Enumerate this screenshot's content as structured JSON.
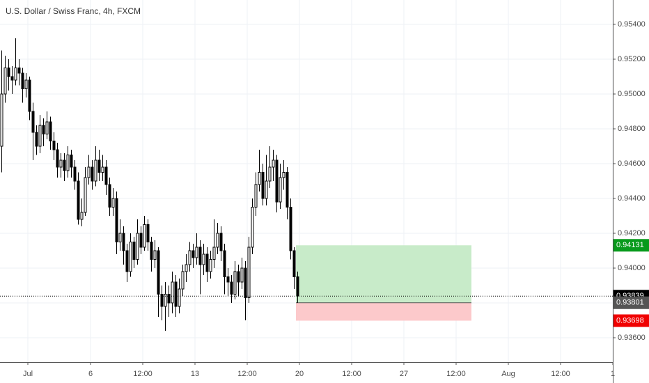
{
  "chart_data": {
    "type": "candlestick",
    "title": "U.S. Dollar / Swiss Franc, 4h, FXCM",
    "xlim": [
      0,
      176
    ],
    "xticks": [
      {
        "value": 8,
        "label": "Jul"
      },
      {
        "value": 26,
        "label": "6"
      },
      {
        "value": 41,
        "label": "12:00"
      },
      {
        "value": 56,
        "label": "13"
      },
      {
        "value": 71,
        "label": "12:00"
      },
      {
        "value": 86,
        "label": "20"
      },
      {
        "value": 101,
        "label": "12:00"
      },
      {
        "value": 116,
        "label": "27"
      },
      {
        "value": 131,
        "label": "12:00"
      },
      {
        "value": 146,
        "label": "Aug"
      },
      {
        "value": 161,
        "label": "12:00"
      },
      {
        "value": 176,
        "label": "1"
      }
    ],
    "ylim": [
      0.9346,
      0.9554
    ],
    "yticks": [
      {
        "value": 0.936,
        "label": "0.93600"
      },
      {
        "value": 0.938,
        "label": "0.93800"
      },
      {
        "value": 0.94,
        "label": "0.94000"
      },
      {
        "value": 0.942,
        "label": "0.94200"
      },
      {
        "value": 0.944,
        "label": "0.94400"
      },
      {
        "value": 0.946,
        "label": "0.94600"
      },
      {
        "value": 0.948,
        "label": "0.94800"
      },
      {
        "value": 0.95,
        "label": "0.95000"
      },
      {
        "value": 0.952,
        "label": "0.95200"
      },
      {
        "value": 0.954,
        "label": "0.95400"
      }
    ],
    "grid": true,
    "up_color": "#ffffff",
    "down_color": "#000000",
    "open": [
      0.947,
      0.95,
      0.9515,
      0.951,
      0.9508,
      0.9515,
      0.9512,
      0.9503,
      0.9508,
      0.949,
      0.9478,
      0.947,
      0.9482,
      0.9477,
      0.9484,
      0.9473,
      0.9468,
      0.9458,
      0.9462,
      0.9456,
      0.9465,
      0.9458,
      0.945,
      0.9428,
      0.9432,
      0.9452,
      0.9458,
      0.945,
      0.9462,
      0.9455,
      0.9458,
      0.9448,
      0.9435,
      0.944,
      0.9415,
      0.942,
      0.941,
      0.9398,
      0.9415,
      0.9405,
      0.942,
      0.9412,
      0.9425,
      0.9415,
      0.9405,
      0.941,
      0.9385,
      0.9378,
      0.9385,
      0.938,
      0.9392,
      0.9378,
      0.9388,
      0.9398,
      0.9402,
      0.941,
      0.9406,
      0.9412,
      0.9402,
      0.9408,
      0.9398,
      0.9405,
      0.9412,
      0.942,
      0.941,
      0.9395,
      0.9392,
      0.9385,
      0.9398,
      0.9392,
      0.94,
      0.9383,
      0.9412,
      0.9435,
      0.9448,
      0.9455,
      0.944,
      0.945,
      0.9458,
      0.9462,
      0.9438,
      0.9452,
      0.9455,
      0.9435,
      0.941,
      0.9395
    ],
    "high": [
      0.9525,
      0.9522,
      0.952,
      0.9516,
      0.9532,
      0.952,
      0.9515,
      0.9512,
      0.951,
      0.9495,
      0.9482,
      0.9488,
      0.9486,
      0.949,
      0.9487,
      0.9478,
      0.9472,
      0.9466,
      0.9466,
      0.947,
      0.9468,
      0.9462,
      0.9455,
      0.944,
      0.9458,
      0.9465,
      0.9462,
      0.947,
      0.9468,
      0.9465,
      0.9462,
      0.9452,
      0.9446,
      0.9444,
      0.9428,
      0.9424,
      0.9414,
      0.942,
      0.9418,
      0.9428,
      0.9424,
      0.943,
      0.9428,
      0.9418,
      0.9416,
      0.9412,
      0.939,
      0.9392,
      0.939,
      0.9398,
      0.9396,
      0.9394,
      0.9402,
      0.9408,
      0.9415,
      0.9414,
      0.942,
      0.9416,
      0.9414,
      0.9412,
      0.941,
      0.9428,
      0.9426,
      0.9424,
      0.9414,
      0.94,
      0.9396,
      0.9404,
      0.9402,
      0.9406,
      0.9404,
      0.9418,
      0.944,
      0.9455,
      0.9468,
      0.946,
      0.9465,
      0.947,
      0.9468,
      0.9465,
      0.946,
      0.9462,
      0.9458,
      0.944,
      0.9412,
      0.9398
    ],
    "low": [
      0.9455,
      0.9495,
      0.9502,
      0.95,
      0.9505,
      0.9505,
      0.9495,
      0.9498,
      0.9485,
      0.9462,
      0.9465,
      0.9466,
      0.947,
      0.9474,
      0.9468,
      0.9462,
      0.9452,
      0.9452,
      0.945,
      0.9452,
      0.9452,
      0.9445,
      0.9425,
      0.9424,
      0.943,
      0.9448,
      0.9445,
      0.9447,
      0.945,
      0.945,
      0.9442,
      0.943,
      0.943,
      0.9408,
      0.941,
      0.9402,
      0.9392,
      0.9395,
      0.94,
      0.9402,
      0.9408,
      0.941,
      0.941,
      0.9398,
      0.94,
      0.9372,
      0.937,
      0.9364,
      0.9372,
      0.9374,
      0.9372,
      0.9374,
      0.9384,
      0.9392,
      0.9398,
      0.94,
      0.9402,
      0.9385,
      0.9396,
      0.9392,
      0.9394,
      0.94,
      0.9408,
      0.9404,
      0.9385,
      0.9384,
      0.938,
      0.9382,
      0.9384,
      0.9388,
      0.937,
      0.938,
      0.9408,
      0.943,
      0.9444,
      0.9436,
      0.9436,
      0.9446,
      0.945,
      0.9432,
      0.9434,
      0.9445,
      0.9428,
      0.9405,
      0.9388,
      0.938
    ],
    "close": [
      0.95,
      0.9515,
      0.951,
      0.9508,
      0.9515,
      0.9512,
      0.9503,
      0.9508,
      0.949,
      0.9478,
      0.947,
      0.9482,
      0.9477,
      0.9484,
      0.9473,
      0.9468,
      0.9458,
      0.9462,
      0.9456,
      0.9465,
      0.9458,
      0.945,
      0.9428,
      0.9432,
      0.9452,
      0.9458,
      0.945,
      0.9462,
      0.9455,
      0.9458,
      0.9448,
      0.9435,
      0.944,
      0.9415,
      0.942,
      0.941,
      0.9398,
      0.9415,
      0.9405,
      0.942,
      0.9412,
      0.9425,
      0.9415,
      0.9405,
      0.941,
      0.9385,
      0.9378,
      0.9385,
      0.938,
      0.9392,
      0.9378,
      0.9388,
      0.9398,
      0.9402,
      0.941,
      0.9406,
      0.9412,
      0.9402,
      0.9408,
      0.9398,
      0.9405,
      0.9412,
      0.942,
      0.941,
      0.9395,
      0.9392,
      0.9385,
      0.9398,
      0.9392,
      0.94,
      0.9383,
      0.9412,
      0.9435,
      0.9448,
      0.9455,
      0.944,
      0.945,
      0.9458,
      0.9462,
      0.9438,
      0.9452,
      0.9455,
      0.9435,
      0.941,
      0.9395,
      0.9384
    ],
    "current_price": 0.93839,
    "position": {
      "start": 85,
      "end": 135.4,
      "entry": 0.93801,
      "target": 0.94131,
      "stop": 0.93698,
      "profit_color": "#c8ebc9",
      "loss_color": "#fcc9cb",
      "target_color": "#089a1c",
      "stop_color": "#f00000",
      "entry_color": "#555555"
    }
  }
}
